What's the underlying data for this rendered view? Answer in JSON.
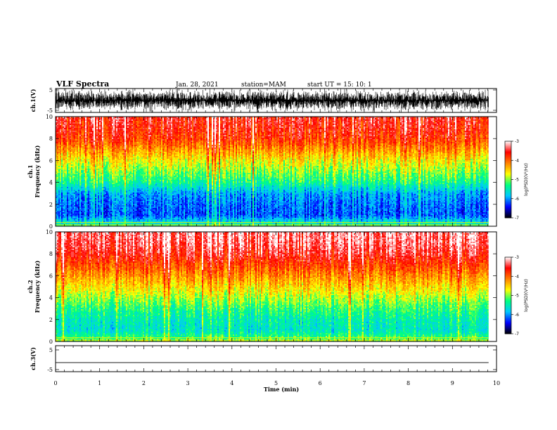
{
  "header": {
    "title": "VLF Spectra",
    "date": "Jan. 28, 2021",
    "station": "station=MAM",
    "start": "start  UT =   15: 10: 1"
  },
  "chart_data": {
    "type": "heatmap",
    "xlabel": "Time  (min)",
    "xlim": [
      0,
      10
    ],
    "x_ticks": [
      "0",
      "1",
      "2",
      "3",
      "4",
      "5",
      "6",
      "7",
      "8",
      "9",
      "10"
    ],
    "panels": [
      {
        "id": "ch1-waveform",
        "type": "line",
        "ylabel": "ch.1(V)",
        "ylim": [
          -5,
          5
        ],
        "y_ticks": [
          "5",
          "-5"
        ],
        "description_color": "#000000"
      },
      {
        "id": "ch1-spectrogram",
        "type": "heatmap",
        "ylabel_top": "ch.1",
        "ylabel": "Frequency  (kHz)",
        "ylim": [
          0,
          10
        ],
        "y_ticks": [
          "0",
          "2",
          "4",
          "6",
          "8",
          "10"
        ],
        "colorbar": {
          "label": "log(PSD)(V²/Hz)",
          "range": [
            -7,
            -3
          ],
          "ticks": [
            "-3",
            "-4",
            "-5",
            "-6",
            "-7"
          ]
        },
        "levels_by_freq": [
          -5.4,
          -6.4,
          -6.3,
          -6.1,
          -5.4,
          -5.0,
          -4.6,
          -4.1,
          -3.6,
          -3.4,
          -3.3
        ]
      },
      {
        "id": "ch2-spectrogram",
        "type": "heatmap",
        "ylabel_top": "ch.2",
        "ylabel": "Frequency  (kHz)",
        "ylim": [
          0,
          10
        ],
        "y_ticks": [
          "0",
          "2",
          "4",
          "6",
          "8",
          "10"
        ],
        "colorbar": {
          "label": "log(PSD)(V²/Hz)",
          "range": [
            -7,
            -3
          ],
          "ticks": [
            "-3",
            "-4",
            "-5",
            "-6",
            "-7"
          ]
        },
        "levels_by_freq": [
          -5.0,
          -5.7,
          -5.6,
          -5.3,
          -4.9,
          -4.5,
          -4.1,
          -3.7,
          -3.3,
          -3.1,
          -3.0
        ]
      },
      {
        "id": "ch3-waveform",
        "type": "line",
        "ylabel": "ch.3(V)",
        "ylim": [
          -5,
          5
        ],
        "y_ticks": [
          "5",
          "-5"
        ],
        "values": [
          -1.5
        ]
      }
    ],
    "colormap": [
      "#000000",
      "#0000ff",
      "#00c8ff",
      "#00ff80",
      "#ffff00",
      "#ff8000",
      "#ff0000",
      "#ffffff"
    ]
  }
}
